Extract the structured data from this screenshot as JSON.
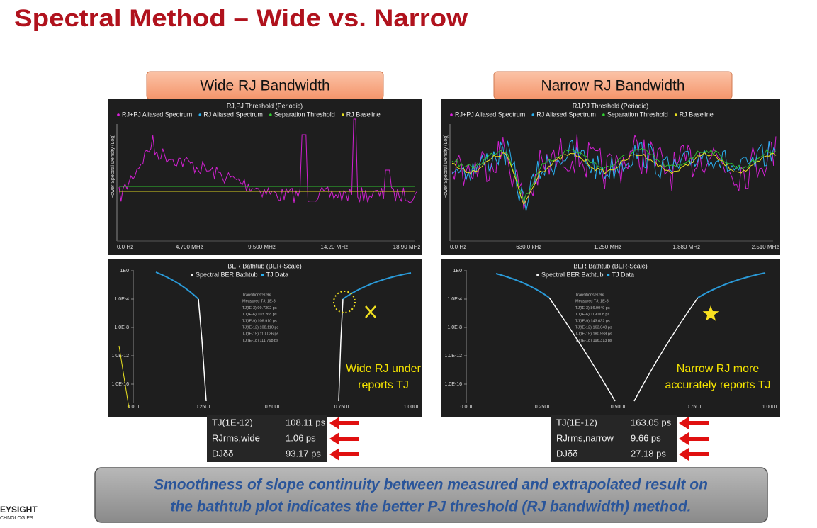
{
  "title": "Spectral Method – Wide vs. Narrow",
  "panels": [
    {
      "header": "Wide RJ Bandwidth",
      "spectrum": {
        "title": "RJ,PJ Threshold (Periodic)",
        "legend": [
          "RJ+PJ Aliased Spectrum",
          "RJ Aliased Spectrum",
          "Separation Threshold",
          "RJ Baseline"
        ],
        "y_label": "Power Spectral Density (Log)",
        "x_ticks": [
          "0.0 Hz",
          "4.700 MHz",
          "9.500 MHz",
          "14.20 MHz",
          "18.90 MHz"
        ]
      },
      "bathtub": {
        "title": "BER Bathtub (BER-Scale)",
        "legend": [
          "Spectral BER Bathtub",
          "TJ Data"
        ],
        "y_ticks": [
          "1E0",
          "1.0E-4",
          "1.0E-8",
          "1.0E-12",
          "1.0E-16"
        ],
        "x_ticks": [
          "0.0UI",
          "0.25UI",
          "0.50UI",
          "0.75UI",
          "1.00UI"
        ],
        "stats": [
          "Transitions:509k",
          "Measured TJ: 1E-5",
          "TJ(IE-3)  99.7392 ps",
          "TJ(IE-6)  103.268 ps",
          "TJ(IE-9)  106.910 ps",
          "TJ(IE-12)  108.110 ps",
          "TJ(IE-15)  110.036 ps",
          "TJ(IE-18)  111.768 ps"
        ],
        "annotation": [
          "Wide RJ under",
          "reports TJ"
        ]
      },
      "table": [
        [
          "TJ(1E-12)",
          "108.11 ps"
        ],
        [
          "RJrms,wide",
          "1.06 ps"
        ],
        [
          "DJδδ",
          "93.17 ps"
        ]
      ]
    },
    {
      "header": "Narrow RJ Bandwidth",
      "spectrum": {
        "title": "RJ,PJ Threshold (Periodic)",
        "legend": [
          "RJ+PJ Aliased Spectrum",
          "RJ Aliased Spectrum",
          "Separation Threshold",
          "RJ Baseline"
        ],
        "y_label": "Power Spectral Density (Log)",
        "x_ticks": [
          "0.0 Hz",
          "630.0 kHz",
          "1.250 MHz",
          "1.880 MHz",
          "2.510 MHz"
        ]
      },
      "bathtub": {
        "title": "BER Bathtub (BER-Scale)",
        "legend": [
          "Spectral BER Bathtub",
          "TJ Data"
        ],
        "y_ticks": [
          "1E0",
          "1.0E-4",
          "1.0E-8",
          "1.0E-12",
          "1.0E-16"
        ],
        "x_ticks": [
          "0.0UI",
          "0.25UI",
          "0.50UI",
          "0.75UI",
          "1.00UI"
        ],
        "stats": [
          "Transitions:509k",
          "Measured TJ: 1E-5",
          "TJ(IE-3)  86.9049 ps",
          "TJ(IE-6)  119.008 ps",
          "TJ(IE-9)  143.032 ps",
          "TJ(IE-12)  163.048 ps",
          "TJ(IE-15)  180.558 ps",
          "TJ(IE-18)  196.313 ps"
        ],
        "annotation": [
          "Narrow RJ more",
          "accurately reports TJ"
        ]
      },
      "table": [
        [
          "TJ(1E-12)",
          "163.05 ps"
        ],
        [
          "RJrms,narrow",
          "9.66 ps"
        ],
        [
          "DJδδ",
          "27.18 ps"
        ]
      ]
    }
  ],
  "banner": [
    "Smoothness of slope continuity between measured and extrapolated result on",
    "the bathtub plot indicates the better PJ threshold (RJ bandwidth) method."
  ],
  "logo": [
    "EYSIGHT",
    "CHNOLOGIES"
  ]
}
